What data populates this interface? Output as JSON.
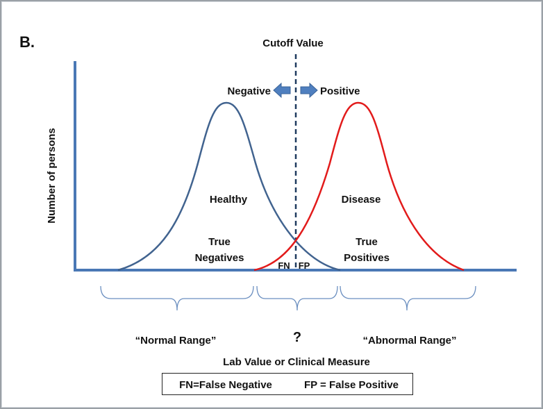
{
  "panel_label": "B.",
  "cutoff": {
    "label": "Cutoff Value"
  },
  "direction": {
    "negative": "Negative",
    "positive": "Positive"
  },
  "y_axis_label": "Number of persons",
  "x_axis_label": "Lab Value or Clinical Measure",
  "curves": {
    "healthy": {
      "label": "Healthy",
      "color": "#41638f"
    },
    "disease": {
      "label": "Disease",
      "color": "#e21b1b"
    }
  },
  "regions": {
    "true_negatives": [
      "True",
      "Negatives"
    ],
    "true_positives": [
      "True",
      "Positives"
    ],
    "fn": "FN",
    "fp": "FP"
  },
  "ranges": {
    "normal": "“Normal Range”",
    "uncertain": "?",
    "abnormal": "“Abnormal Range”"
  },
  "legend": {
    "fn": "FN=False Negative",
    "fp": "FP = False Positive"
  },
  "colors": {
    "axis": "#4a78b5",
    "arrow": "#4f7fbf",
    "cutoff_line": "#1e3a5f",
    "brace": "#6b8fc0"
  }
}
